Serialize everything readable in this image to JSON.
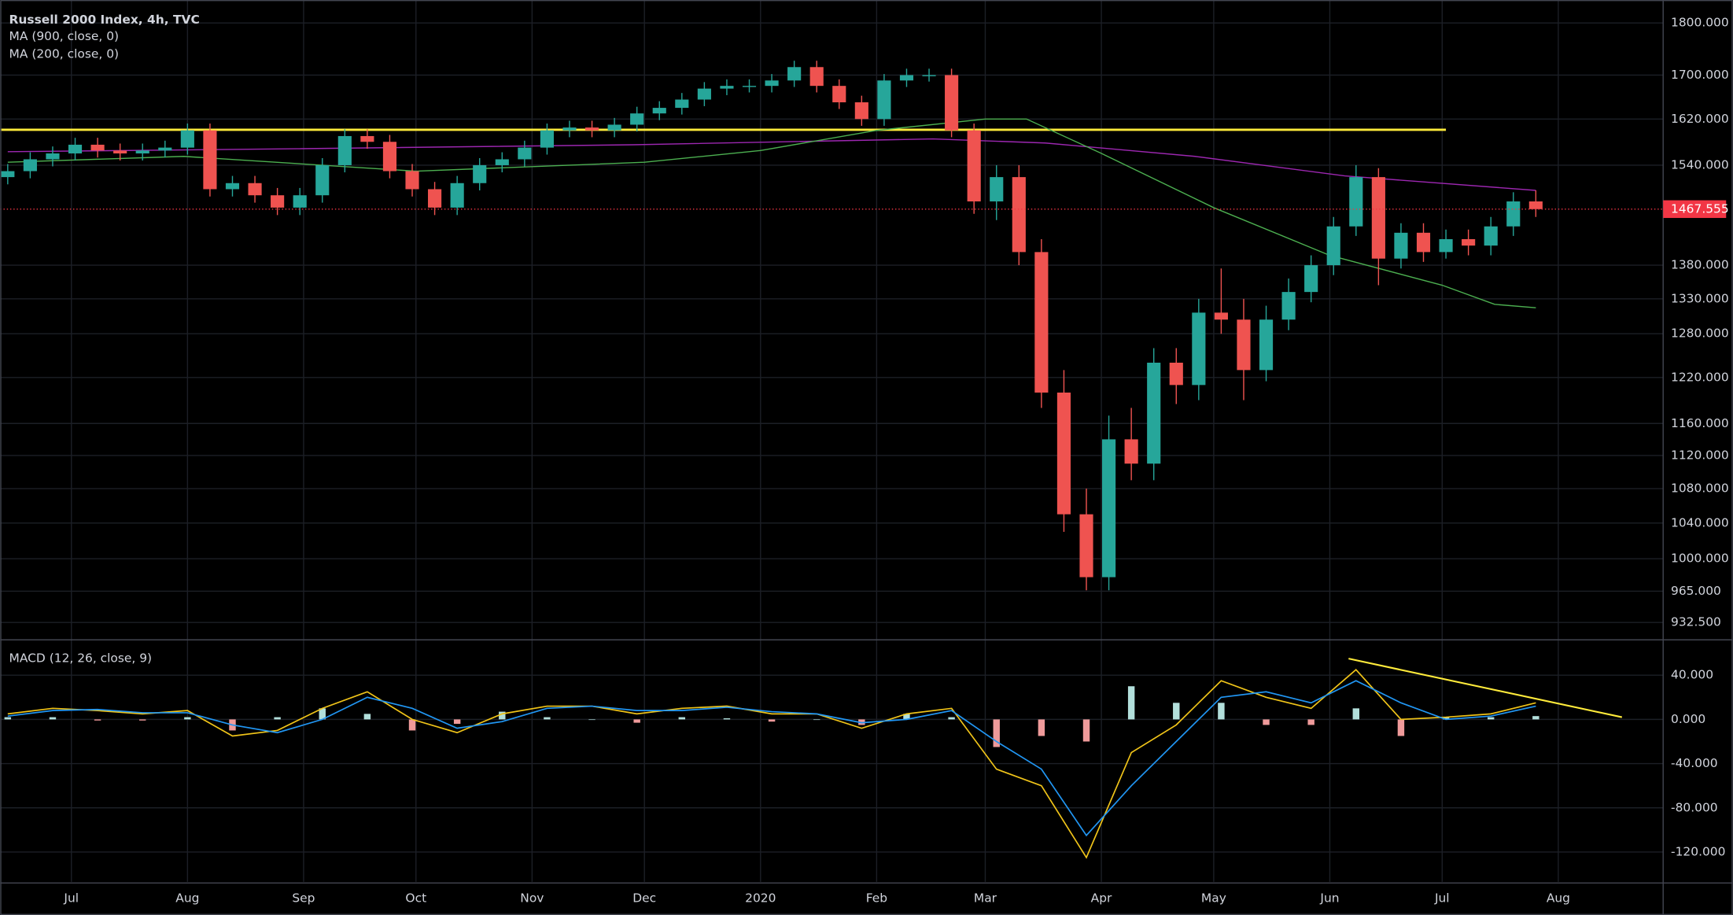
{
  "chart_data": [
    {
      "type": "candlestick",
      "title": "Russell 2000 Index, 4h, TVC",
      "x": [
        -17,
        -11,
        -5,
        1,
        7,
        13,
        19,
        25,
        31,
        37,
        43,
        49,
        55,
        61,
        67,
        73,
        79,
        85,
        91,
        97,
        103,
        109,
        115,
        121,
        127,
        133,
        139,
        145,
        151,
        157,
        163,
        169,
        175,
        181,
        187,
        193,
        199,
        205,
        211,
        217,
        223,
        229,
        235,
        241,
        247,
        253,
        259,
        265,
        271,
        277,
        283,
        289,
        295,
        301,
        307,
        313,
        319,
        325,
        331,
        337,
        343,
        349,
        355,
        361,
        367,
        373,
        379,
        385,
        391
      ],
      "open": [
        1520,
        1530,
        1550,
        1560,
        1575,
        1565,
        1560,
        1565,
        1570,
        1600,
        1500,
        1510,
        1490,
        1470,
        1490,
        1540,
        1590,
        1580,
        1530,
        1500,
        1470,
        1510,
        1540,
        1550,
        1570,
        1600,
        1605,
        1600,
        1610,
        1630,
        1640,
        1655,
        1675,
        1680,
        1680,
        1690,
        1715,
        1680,
        1650,
        1620,
        1690,
        1700,
        1700,
        1600,
        1480,
        1520,
        1400,
        1200,
        1050,
        980,
        1140,
        1110,
        1240,
        1210,
        1310,
        1300,
        1230,
        1300,
        1340,
        1380,
        1440,
        1520,
        1390,
        1430,
        1400,
        1420,
        1410,
        1440,
        1480
      ],
      "high": [
        1542,
        1562,
        1572,
        1587,
        1587,
        1577,
        1577,
        1582,
        1612,
        1612,
        1522,
        1522,
        1502,
        1502,
        1552,
        1602,
        1602,
        1592,
        1542,
        1512,
        1522,
        1552,
        1562,
        1582,
        1612,
        1617,
        1617,
        1622,
        1642,
        1652,
        1667,
        1687,
        1692,
        1692,
        1702,
        1727,
        1727,
        1692,
        1662,
        1702,
        1712,
        1712,
        1712,
        1612,
        1540,
        1540,
        1420,
        1230,
        1080,
        1170,
        1180,
        1260,
        1260,
        1330,
        1375,
        1330,
        1320,
        1360,
        1395,
        1455,
        1540,
        1535,
        1445,
        1445,
        1435,
        1435,
        1455,
        1495,
        1498
      ],
      "low": [
        1508,
        1518,
        1538,
        1548,
        1553,
        1548,
        1548,
        1553,
        1558,
        1488,
        1488,
        1478,
        1458,
        1458,
        1478,
        1528,
        1568,
        1518,
        1488,
        1458,
        1458,
        1498,
        1528,
        1538,
        1558,
        1588,
        1588,
        1588,
        1598,
        1618,
        1628,
        1643,
        1663,
        1668,
        1668,
        1678,
        1668,
        1638,
        1608,
        1608,
        1678,
        1688,
        1588,
        1460,
        1450,
        1380,
        1180,
        1030,
        966,
        966,
        1090,
        1090,
        1185,
        1190,
        1280,
        1190,
        1215,
        1285,
        1325,
        1365,
        1425,
        1350,
        1375,
        1385,
        1390,
        1395,
        1395,
        1425,
        1455
      ],
      "close": [
        1530,
        1550,
        1560,
        1575,
        1565,
        1560,
        1565,
        1570,
        1600,
        1500,
        1510,
        1490,
        1470,
        1490,
        1540,
        1590,
        1580,
        1530,
        1500,
        1470,
        1510,
        1540,
        1550,
        1570,
        1600,
        1605,
        1600,
        1610,
        1630,
        1640,
        1655,
        1675,
        1680,
        1680,
        1690,
        1715,
        1680,
        1650,
        1620,
        1690,
        1700,
        1700,
        1600,
        1480,
        1520,
        1400,
        1200,
        1050,
        980,
        1140,
        1110,
        1240,
        1210,
        1310,
        1300,
        1230,
        1300,
        1340,
        1380,
        1440,
        1520,
        1390,
        1430,
        1400,
        1420,
        1410,
        1440,
        1480,
        1467.555
      ],
      "up_color": "#26a69a",
      "down_color": "#ef5350",
      "last_color": "#f23645",
      "series": [
        {
          "name": "MA (900, close, 0)",
          "color": "#9c27b0",
          "x": [
            -17,
            60,
            150,
            230,
            260,
            300,
            340,
            391
          ],
          "values": [
            1563,
            1568,
            1575,
            1585,
            1578,
            1555,
            1522,
            1498
          ]
        },
        {
          "name": "MA (200, close, 0)",
          "color": "#4caf50",
          "x": [
            -17,
            30,
            92,
            153,
            184,
            215,
            244,
            255,
            275,
            305,
            336,
            366,
            380,
            391
          ],
          "values": [
            1545,
            1555,
            1530,
            1545,
            1565,
            1600,
            1620,
            1620,
            1560,
            1470,
            1395,
            1350,
            1322,
            1317
          ]
        }
      ],
      "support_line": {
        "value": 1601,
        "x_end": 367,
        "color": "#ffeb3b"
      },
      "log_scale": true,
      "grid": true,
      "xlim": [
        -19,
        425
      ],
      "xticks": [
        {
          "value": 0,
          "label": "Jul"
        },
        {
          "value": 31,
          "label": "Aug"
        },
        {
          "value": 62,
          "label": "Sep"
        },
        {
          "value": 92,
          "label": "Oct"
        },
        {
          "value": 123,
          "label": "Nov"
        },
        {
          "value": 153,
          "label": "Dec"
        },
        {
          "value": 184,
          "label": "2020"
        },
        {
          "value": 215,
          "label": "Feb"
        },
        {
          "value": 244,
          "label": "Mar"
        },
        {
          "value": 275,
          "label": "Apr"
        },
        {
          "value": 305,
          "label": "May"
        },
        {
          "value": 336,
          "label": "Jun"
        },
        {
          "value": 366,
          "label": "Jul"
        },
        {
          "value": 397,
          "label": "Aug"
        }
      ],
      "ylim": [
        916,
        1846
      ],
      "yticks": [
        {
          "value": 1800,
          "label": "1800.000"
        },
        {
          "value": 1700,
          "label": "1700.000"
        },
        {
          "value": 1620,
          "label": "1620.000"
        },
        {
          "value": 1540,
          "label": "1540.000"
        },
        {
          "value": 1380,
          "label": "1380.000"
        },
        {
          "value": 1330,
          "label": "1330.000"
        },
        {
          "value": 1280,
          "label": "1280.000"
        },
        {
          "value": 1220,
          "label": "1220.000"
        },
        {
          "value": 1160,
          "label": "1160.000"
        },
        {
          "value": 1120,
          "label": "1120.000"
        },
        {
          "value": 1080,
          "label": "1080.000"
        },
        {
          "value": 1040,
          "label": "1040.000"
        },
        {
          "value": 1000,
          "label": "1000.000"
        },
        {
          "value": 965,
          "label": "965.000"
        },
        {
          "value": 932.5,
          "label": "932.500"
        }
      ]
    },
    {
      "type": "macd",
      "title": "MACD (12, 26, close, 9)",
      "x": [
        -17,
        -5,
        7,
        19,
        31,
        43,
        55,
        67,
        79,
        91,
        103,
        115,
        127,
        139,
        151,
        163,
        175,
        187,
        199,
        211,
        223,
        235,
        247,
        259,
        271,
        283,
        295,
        307,
        319,
        331,
        343,
        355,
        367,
        379,
        391
      ],
      "series": [
        {
          "color": "#f0c419",
          "values": [
            5,
            10,
            8,
            5,
            8,
            -15,
            -10,
            10,
            25,
            0,
            -12,
            5,
            12,
            12,
            5,
            10,
            12,
            5,
            5,
            -8,
            5,
            10,
            -45,
            -60,
            -125,
            -30,
            -5,
            35,
            20,
            10,
            45,
            0,
            2,
            5,
            15
          ]
        },
        {
          "color": "#2196f3",
          "values": [
            3,
            8,
            9,
            6,
            6,
            -5,
            -12,
            0,
            20,
            10,
            -8,
            -2,
            10,
            12,
            8,
            8,
            11,
            7,
            5,
            -3,
            0,
            8,
            -20,
            -45,
            -105,
            -60,
            -20,
            20,
            25,
            15,
            35,
            15,
            0,
            3,
            12
          ]
        }
      ],
      "histogram": {
        "values": [
          2,
          2,
          -1,
          -1,
          2,
          -10,
          2,
          10,
          5,
          -10,
          -4,
          7,
          2,
          0,
          -3,
          2,
          1,
          -2,
          0,
          -5,
          5,
          2,
          -25,
          -15,
          -20,
          30,
          15,
          15,
          -5,
          -5,
          10,
          -15,
          2,
          2,
          3
        ],
        "up_color": "#b2dfdb",
        "down_color": "#ef9a9a"
      },
      "trend_line": {
        "x": [
          341,
          414
        ],
        "values": [
          55,
          2
        ],
        "color": "#ffeb3b"
      },
      "ylim": [
        -147,
        71
      ],
      "yticks": [
        {
          "value": 40,
          "label": "40.000"
        },
        {
          "value": 0,
          "label": "0.000"
        },
        {
          "value": -40,
          "label": "-40.000"
        },
        {
          "value": -80,
          "label": "-80.000"
        },
        {
          "value": -120,
          "label": "-120.000"
        }
      ]
    }
  ]
}
